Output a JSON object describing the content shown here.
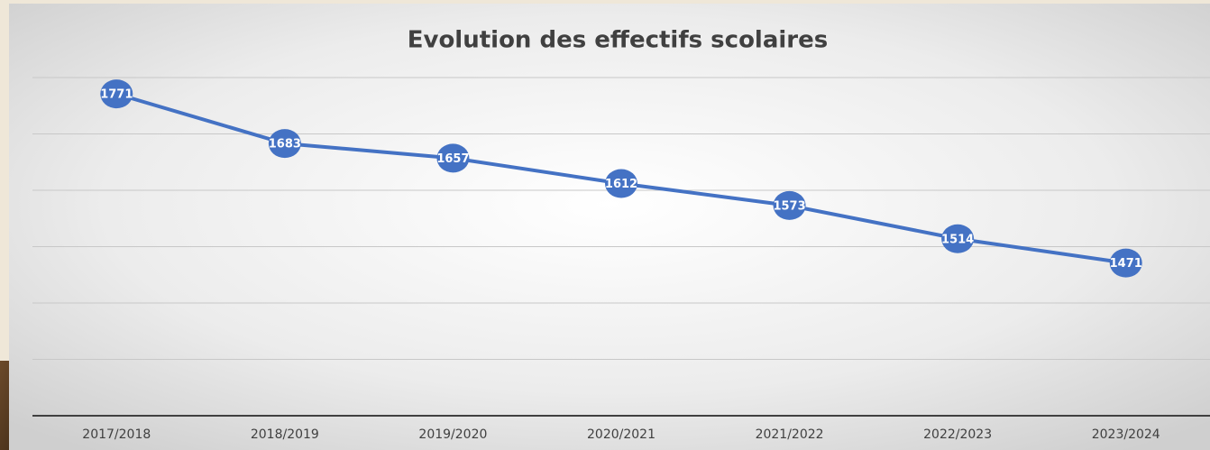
{
  "chart_data": {
    "type": "line",
    "title": "Evolution des effectifs scolaires",
    "categories": [
      "2017/2018",
      "2018/2019",
      "2019/2020",
      "2020/2021",
      "2021/2022",
      "2022/2023",
      "2023/2024"
    ],
    "values": [
      1771,
      1683,
      1657,
      1612,
      1573,
      1514,
      1471
    ],
    "color": "#4472c4",
    "ylim": [
      1200,
      1800
    ],
    "yticks": [
      1200,
      1300,
      1400,
      1500,
      1600,
      1700,
      1800
    ],
    "ytick_labels": false,
    "grid": true,
    "data_labels": true
  }
}
